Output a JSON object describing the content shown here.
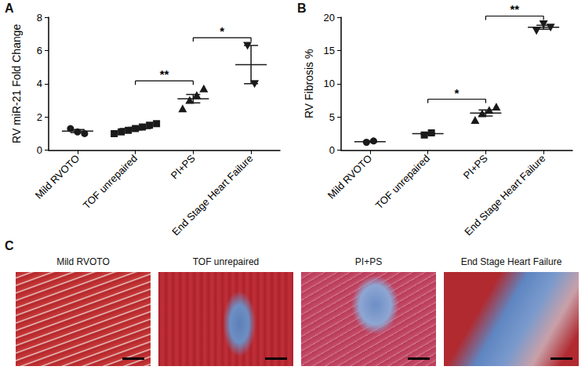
{
  "chart_data": [
    {
      "type": "scatter",
      "title": "A",
      "ylabel": "RV miR-21 Fold Change",
      "categories": [
        "Mild RVOTO",
        "TOF unrepaired",
        "PI+PS",
        "End Stage Heart Failure"
      ],
      "markers": [
        "circle",
        "square",
        "triangle",
        "inverted_triangle"
      ],
      "points": [
        [
          1.3,
          1.1,
          1.0
        ],
        [
          1.0,
          1.1,
          1.2,
          1.3,
          1.4,
          1.5,
          1.6
        ],
        [
          2.5,
          3.0,
          3.3,
          3.7
        ],
        [
          6.3,
          4.0
        ]
      ],
      "mean": [
        1.15,
        1.3,
        3.1,
        5.15
      ],
      "error": [
        0.09,
        0.08,
        0.25,
        1.15
      ],
      "ylim": [
        0,
        8
      ],
      "yticks": [
        0,
        2,
        4,
        6,
        8
      ],
      "grid": false,
      "color": "#1a1a1a",
      "annotations": [
        {
          "between": [
            1,
            2
          ],
          "text": "**"
        },
        {
          "between": [
            2,
            3
          ],
          "text": "*"
        }
      ]
    },
    {
      "type": "scatter",
      "title": "B",
      "ylabel": "RV Fibrosis %",
      "categories": [
        "Mild RVOTO",
        "TOF unrepaired",
        "PI+PS",
        "End Stage Heart Failure"
      ],
      "markers": [
        "circle",
        "square",
        "triangle",
        "inverted_triangle"
      ],
      "points": [
        [
          1.2,
          1.4
        ],
        [
          2.3,
          2.6
        ],
        [
          4.5,
          5.5,
          6.0,
          6.5
        ],
        [
          18.0,
          19.0,
          18.5
        ]
      ],
      "mean": [
        1.3,
        2.5,
        5.6,
        18.5
      ],
      "error": [
        0.1,
        0.15,
        0.45,
        0.3
      ],
      "ylim": [
        0,
        20
      ],
      "yticks": [
        0,
        5,
        10,
        15,
        20
      ],
      "grid": false,
      "color": "#1a1a1a",
      "annotations": [
        {
          "between": [
            1,
            2
          ],
          "text": "*"
        },
        {
          "between": [
            2,
            3
          ],
          "text": "**"
        }
      ]
    }
  ],
  "panel_c": {
    "label": "C",
    "images": [
      "Mild RVOTO",
      "TOF unrepaired",
      "PI+PS",
      "End Stage Heart Failure"
    ]
  }
}
